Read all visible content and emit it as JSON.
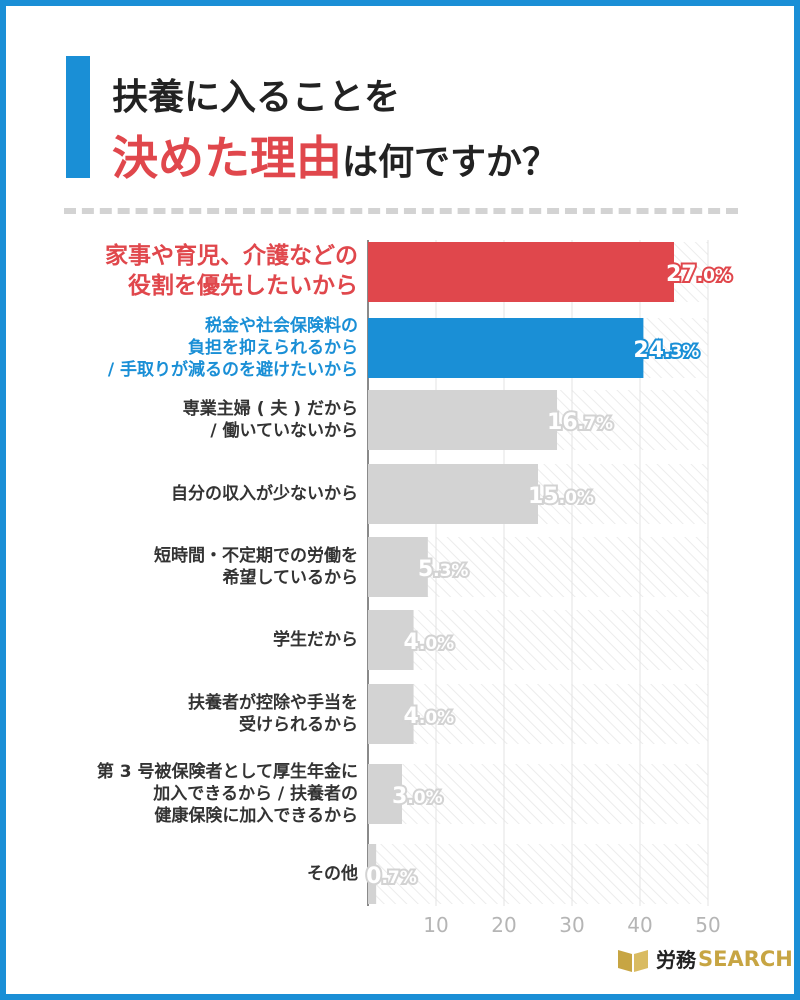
{
  "title": {
    "line1": "扶養に入ることを",
    "line2_accent": "決めた理由",
    "line2_rest": "は何ですか？"
  },
  "logo": {
    "jp": "労務",
    "en": "SEARCH"
  },
  "colors": {
    "accent_red": "#e0474c",
    "accent_blue": "#1a8fd6",
    "bar_gray": "#d3d3d3",
    "label_gray": "#333333"
  },
  "chart_data": {
    "type": "bar",
    "orientation": "horizontal",
    "categories": [
      "家事や育児、介護などの\n役割を優先したいから",
      "税金や社会保険料の\n負担を抑えられるから\n/ 手取りが減るのを避けたいから",
      "専業主婦 ( 夫 ) だから\n/ 働いていないから",
      "自分の収入が少ないから",
      "短時間・不定期での労働を\n希望しているから",
      "学生だから",
      "扶養者が控除や手当を\n受けられるから",
      "第 3 号被保険者として厚生年金に\n加入できるから / 扶養者の\n健康保険に加入できるから",
      "その他"
    ],
    "values": [
      45,
      40.5,
      27.8,
      25,
      8.8,
      6.7,
      6.7,
      5,
      1.2
    ],
    "value_labels": [
      "27.0%",
      "24.3%",
      "16.7%",
      "15.0%",
      "5.3%",
      "4.0%",
      "4.0%",
      "3.0%",
      "0.7%"
    ],
    "xticks": [
      10,
      20,
      30,
      40,
      50
    ],
    "xlim": [
      0,
      50
    ],
    "highlight": [
      "red",
      "blue",
      null,
      null,
      null,
      null,
      null,
      null,
      null
    ]
  }
}
